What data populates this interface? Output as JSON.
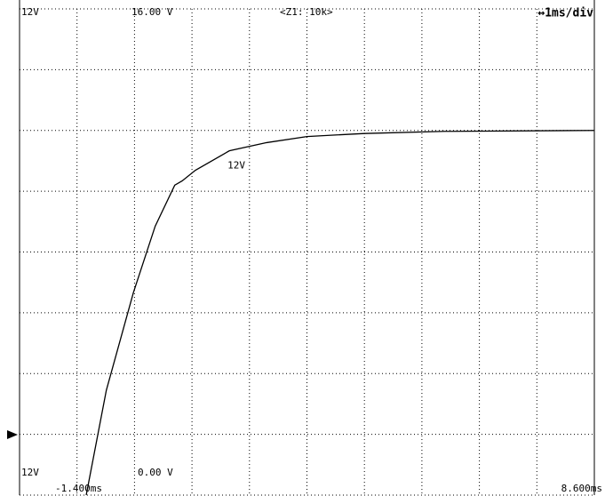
{
  "chart_data": {
    "type": "line",
    "channel_label_top": "12V",
    "channel_label_bottom": "12V",
    "y_top_label": "16.00 V",
    "y_bottom_label": "0.00 V",
    "zoom_label": "<Z1: 10k>",
    "timebase_label": "↔1ms/div",
    "x_start_label": "-1.400ms",
    "x_end_label": "8.600ms",
    "series": [
      {
        "name": "12V",
        "color": "#000000",
        "x": [
          -0.24,
          0.11,
          0.58,
          0.96,
          1.3,
          1.43,
          1.66,
          2.25,
          2.9,
          3.6,
          4.6,
          6.0,
          8.6
        ],
        "values": [
          0,
          3.45,
          6.66,
          8.85,
          10.2,
          10.34,
          10.69,
          11.33,
          11.6,
          11.8,
          11.9,
          11.97,
          12.0
        ]
      }
    ],
    "xlim": [
      -1.4,
      8.6
    ],
    "ylim": [
      0,
      16
    ],
    "xticks": [
      -1.4,
      -0.4,
      0.6,
      1.6,
      2.6,
      3.6,
      4.6,
      5.6,
      6.6,
      7.6,
      8.6
    ],
    "yticks": [
      0,
      2,
      4,
      6,
      8,
      10,
      12,
      14,
      16
    ],
    "grid": true
  }
}
